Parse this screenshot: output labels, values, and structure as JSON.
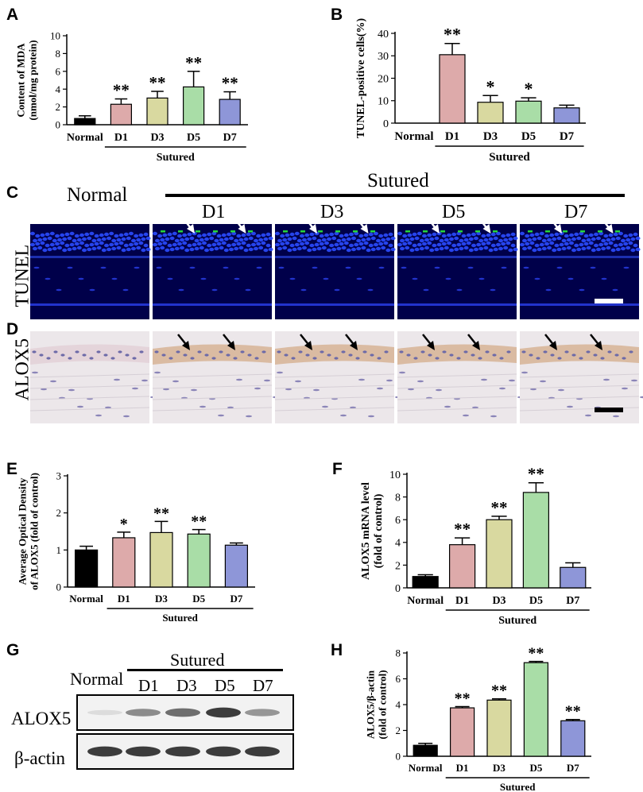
{
  "panel_labels": [
    "A",
    "B",
    "C",
    "D",
    "E",
    "F",
    "G",
    "H"
  ],
  "colors": {
    "normal": "#000000",
    "d1": "#ddaaaa",
    "d3": "#d9d9a0",
    "d5": "#a9dda7",
    "d7": "#8e96d8",
    "tunel_bg": "#00004a",
    "alox5_bg": "#ece7ea"
  },
  "chart_data": [
    {
      "id": "A",
      "type": "bar",
      "categories": [
        "Normal",
        "D1",
        "D3",
        "D5",
        "D7"
      ],
      "values": [
        0.7,
        2.3,
        3.0,
        4.25,
        2.85
      ],
      "errors": [
        0.3,
        0.6,
        0.75,
        1.75,
        0.85
      ],
      "significance": [
        "",
        "**",
        "**",
        "**",
        "**"
      ],
      "ylabel": [
        "Content of MDA",
        "(nmol/mg protein)"
      ],
      "yticks": [
        0,
        2,
        4,
        6,
        8,
        10
      ],
      "ylim": [
        0,
        10
      ],
      "group_label": "Sutured"
    },
    {
      "id": "B",
      "type": "bar",
      "categories": [
        "Normal",
        "D1",
        "D3",
        "D5",
        "D7"
      ],
      "values": [
        0,
        30.5,
        9.3,
        9.8,
        6.8
      ],
      "errors": [
        0,
        5.0,
        3.0,
        1.5,
        1.2
      ],
      "significance": [
        "",
        "**",
        "*",
        "*",
        ""
      ],
      "ylabel": [
        "TUNEL-positive cells(%)"
      ],
      "yticks": [
        0,
        10,
        20,
        30,
        40
      ],
      "ylim": [
        0,
        40
      ],
      "group_label": "Sutured"
    },
    {
      "id": "E",
      "type": "bar",
      "categories": [
        "Normal",
        "D1",
        "D3",
        "D5",
        "D7"
      ],
      "values": [
        1.0,
        1.33,
        1.47,
        1.43,
        1.13
      ],
      "errors": [
        0.1,
        0.15,
        0.3,
        0.12,
        0.06
      ],
      "significance": [
        "",
        "*",
        "**",
        "**",
        ""
      ],
      "ylabel": [
        "Average Optical Density",
        "of ALOX5 (fold of control)"
      ],
      "yticks": [
        0,
        1,
        2,
        3
      ],
      "ylim": [
        0,
        3
      ],
      "group_label": "Sutured"
    },
    {
      "id": "F",
      "type": "bar",
      "categories": [
        "Normal",
        "D1",
        "D3",
        "D5",
        "D7"
      ],
      "values": [
        1.0,
        3.8,
        6.0,
        8.4,
        1.8
      ],
      "errors": [
        0.15,
        0.6,
        0.3,
        0.85,
        0.4
      ],
      "significance": [
        "",
        "**",
        "**",
        "**",
        ""
      ],
      "ylabel": [
        "ALOX5 mRNA level",
        "(fold of control)"
      ],
      "yticks": [
        0,
        2,
        4,
        6,
        8,
        10
      ],
      "ylim": [
        0,
        10
      ],
      "group_label": "Sutured"
    },
    {
      "id": "H",
      "type": "bar",
      "categories": [
        "Normal",
        "D1",
        "D3",
        "D5",
        "D7"
      ],
      "values": [
        0.85,
        3.75,
        4.35,
        7.25,
        2.75
      ],
      "errors": [
        0.15,
        0.1,
        0.1,
        0.1,
        0.1
      ],
      "significance": [
        "",
        "**",
        "**",
        "**",
        "**"
      ],
      "ylabel": [
        "ALOX5/β-actin",
        "(fold of control)"
      ],
      "yticks": [
        0,
        2,
        4,
        6,
        8
      ],
      "ylim": [
        0,
        8
      ],
      "group_label": "Sutured"
    }
  ],
  "micrographs": {
    "group_label": "Sutured",
    "normal_label": "Normal",
    "days": [
      "D1",
      "D3",
      "D5",
      "D7"
    ],
    "row_labels": [
      "TUNEL",
      "ALOX5"
    ]
  },
  "western_blot": {
    "group_label": "Sutured",
    "normal_label": "Normal",
    "lanes": [
      "D1",
      "D3",
      "D5",
      "D7"
    ],
    "bands": [
      "ALOX5",
      "β-actin"
    ],
    "alox5_intensity": [
      0.05,
      0.45,
      0.6,
      0.85,
      0.4
    ],
    "actin_intensity": [
      0.85,
      0.85,
      0.85,
      0.85,
      0.85
    ]
  }
}
